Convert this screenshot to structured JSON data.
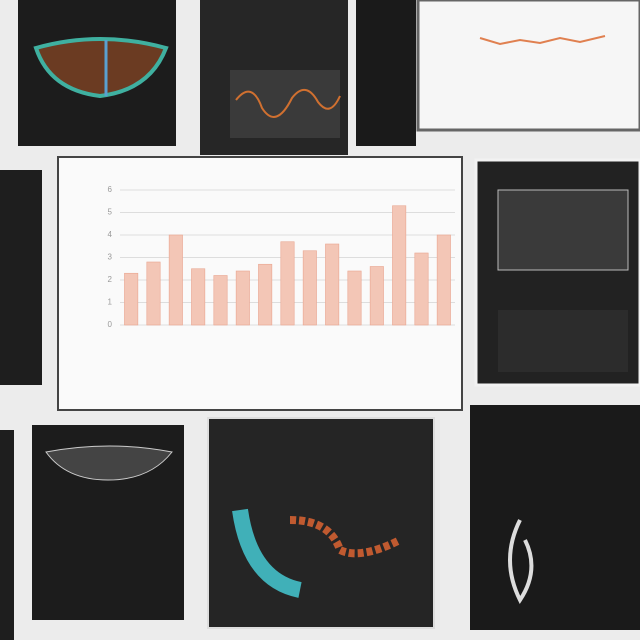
{
  "chart_data": {
    "type": "bar",
    "values": [
      2.3,
      2.8,
      4.0,
      2.5,
      2.2,
      2.4,
      2.7,
      3.7,
      3.3,
      3.6,
      2.4,
      2.6,
      5.3,
      3.2,
      4.0
    ],
    "color": "#f3c6b6",
    "ylim": [
      0,
      6
    ],
    "yticks": [
      0,
      1,
      2,
      3,
      4,
      5,
      6
    ],
    "grid": true
  }
}
